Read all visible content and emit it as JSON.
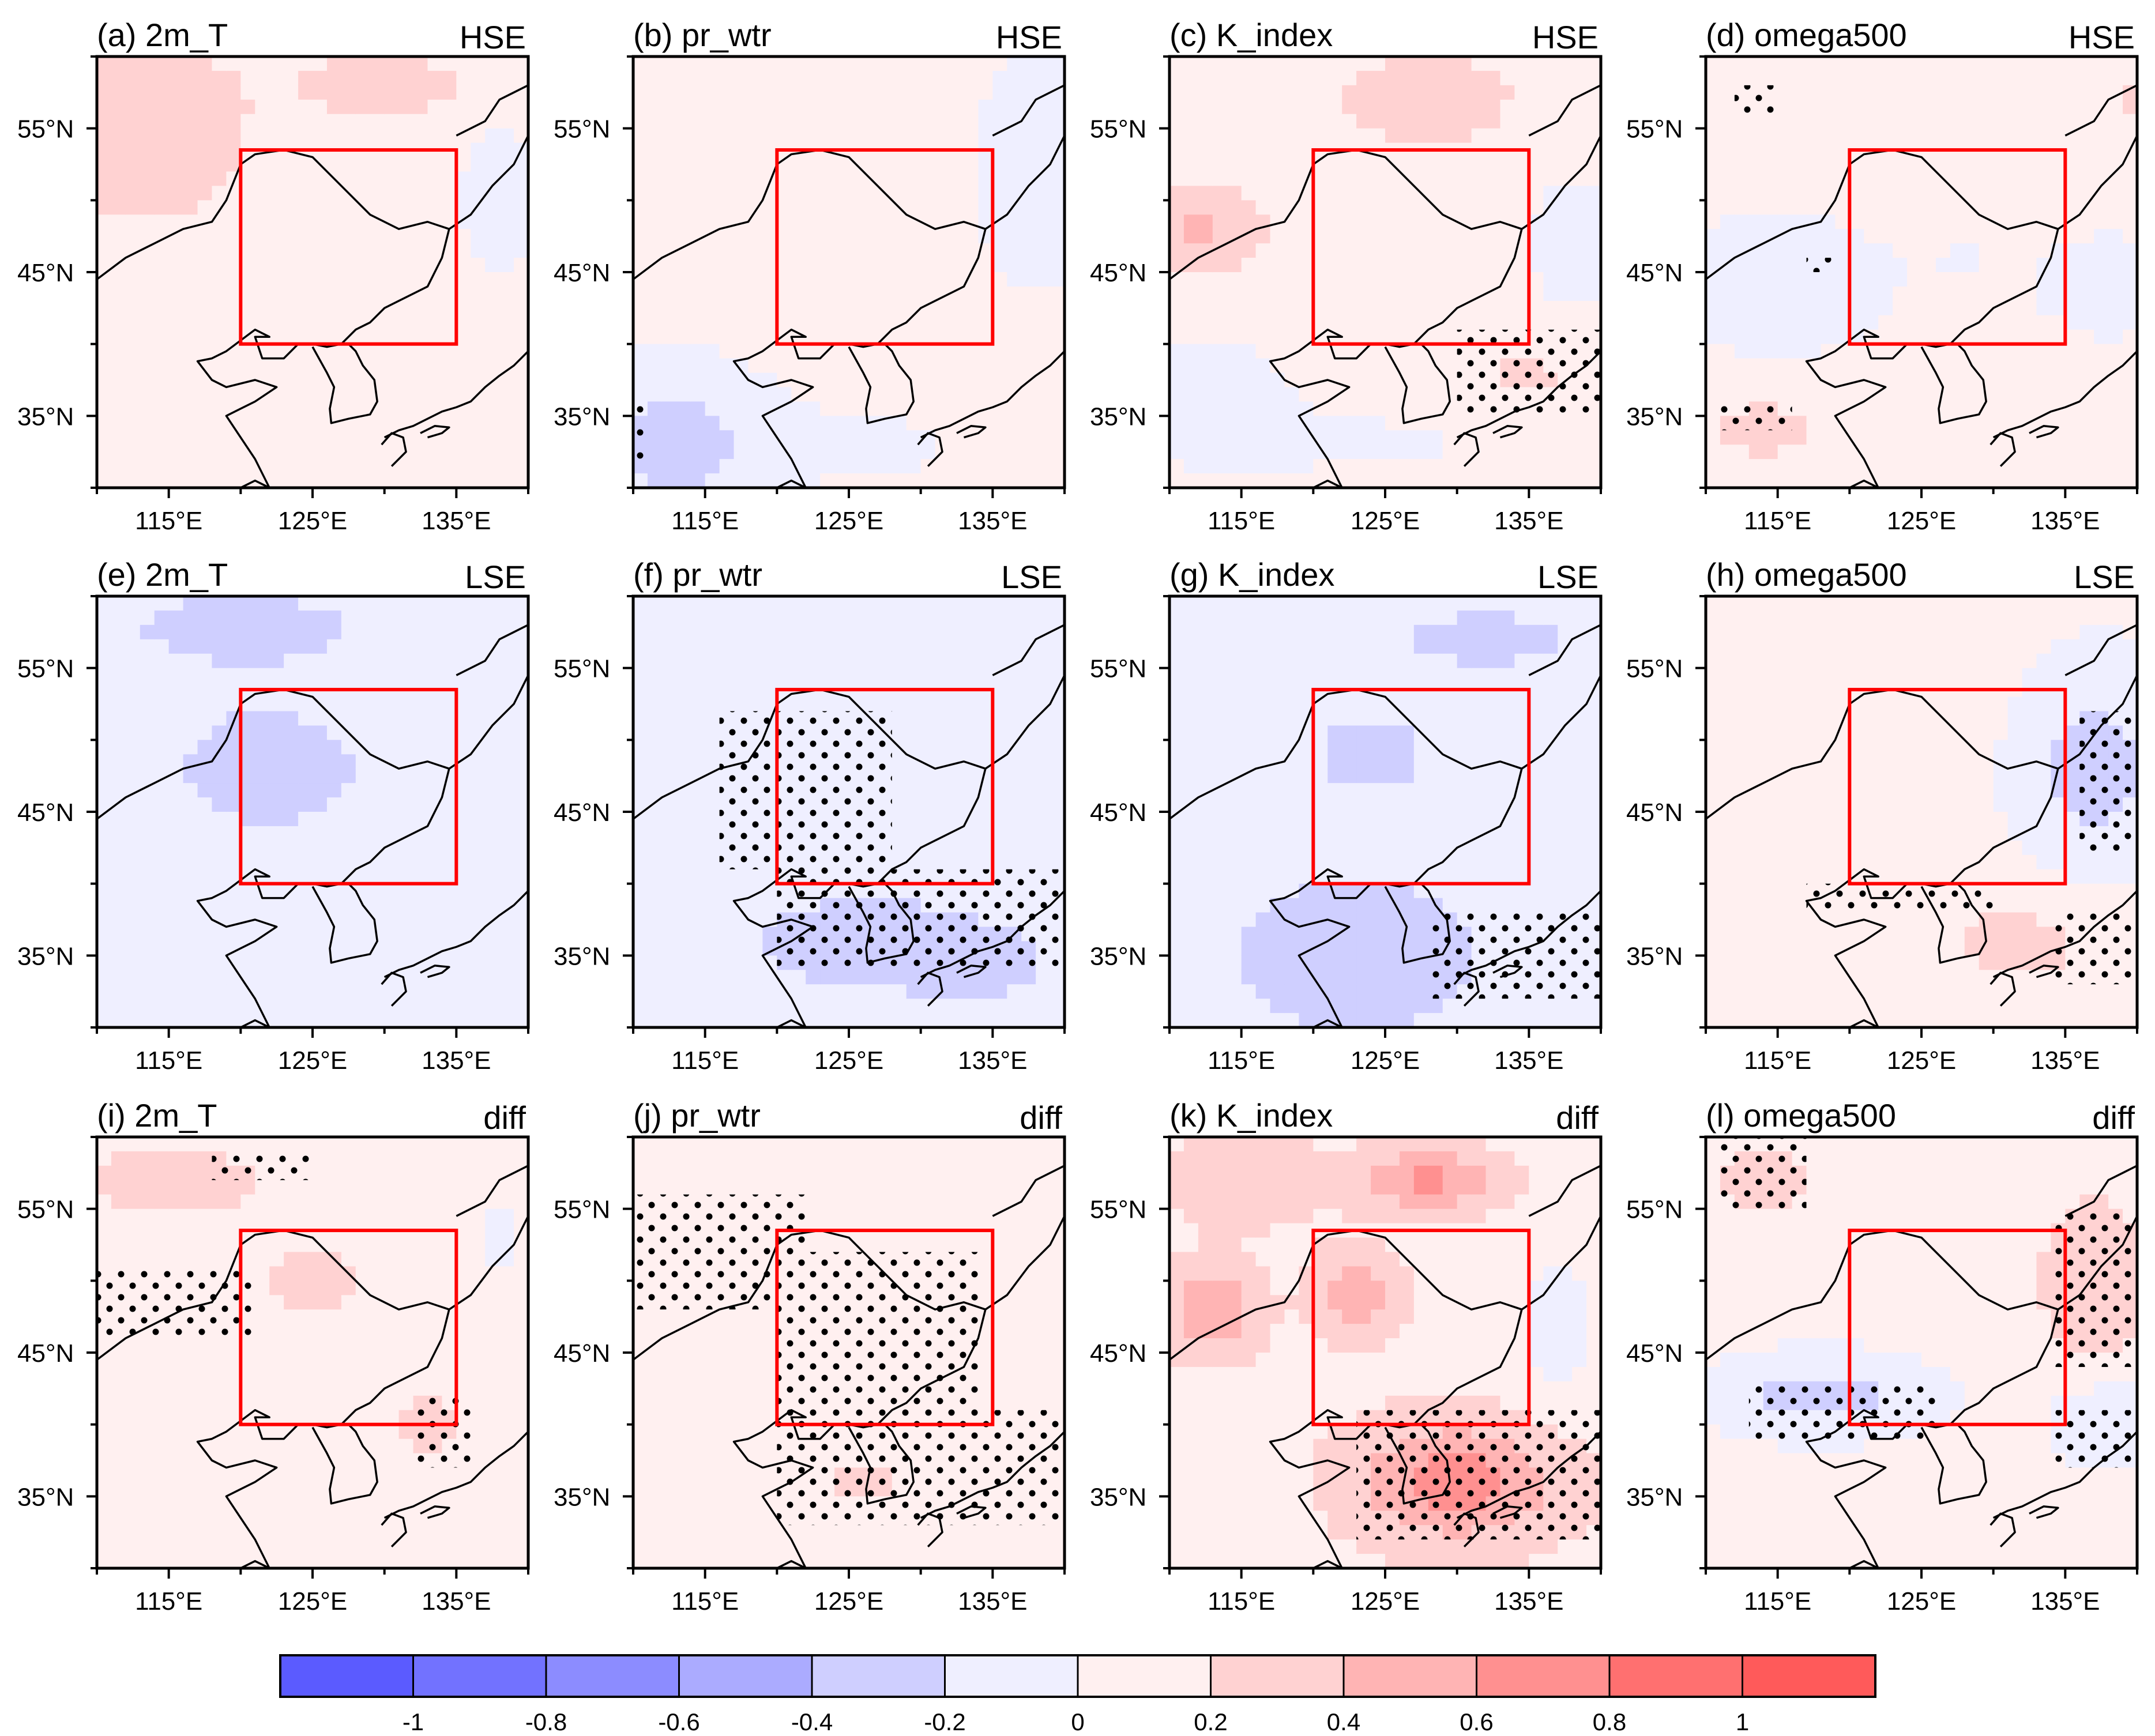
{
  "figure": {
    "rows": [
      {
        "tag": "HSE",
        "panels": [
          {
            "title": "(a) 2m_T",
            "field": "a"
          },
          {
            "title": "(b) pr_wtr",
            "field": "b"
          },
          {
            "title": "(c) K_index",
            "field": "c"
          },
          {
            "title": "(d) omega500",
            "field": "d"
          }
        ]
      },
      {
        "tag": "LSE",
        "panels": [
          {
            "title": "(e) 2m_T",
            "field": "e"
          },
          {
            "title": "(f) pr_wtr",
            "field": "f"
          },
          {
            "title": "(g) K_index",
            "field": "g"
          },
          {
            "title": "(h) omega500",
            "field": "h"
          }
        ]
      },
      {
        "tag": "diff",
        "panels": [
          {
            "title": "(i) 2m_T",
            "field": "i"
          },
          {
            "title": "(j) pr_wtr",
            "field": "j"
          },
          {
            "title": "(k) K_index",
            "field": "k"
          },
          {
            "title": "(l) omega500",
            "field": "l"
          }
        ]
      }
    ],
    "lat_ticks": [
      "55°N",
      "45°N",
      "35°N"
    ],
    "lon_ticks": [
      "115°E",
      "125°E",
      "135°E"
    ],
    "map_extent": {
      "lon": [
        110,
        140
      ],
      "lat": [
        30,
        60
      ]
    },
    "study_box": {
      "lon": [
        120,
        135
      ],
      "lat": [
        40,
        53.5
      ]
    },
    "box_color": "#ff0000",
    "colorbar": {
      "labels": [
        "-1",
        "-0.8",
        "-0.6",
        "-0.4",
        "-0.2",
        "0",
        "0.2",
        "0.4",
        "0.6",
        "0.8",
        "1"
      ],
      "colors": [
        "#5b5bff",
        "#7272ff",
        "#8c8cff",
        "#ababff",
        "#cfcfff",
        "#efefff",
        "#fff0f0",
        "#ffd2d2",
        "#ffb4b4",
        "#ff9090",
        "#ff7070",
        "#ff5a5a"
      ]
    }
  }
}
